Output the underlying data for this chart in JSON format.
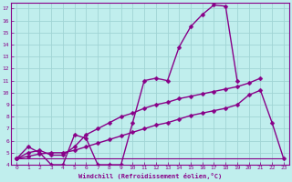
{
  "background_color": "#c0eeed",
  "grid_color": "#a0d4d4",
  "line_color": "#880088",
  "xlabel": "Windchill (Refroidissement éolien,°C)",
  "xlabel_color": "#880088",
  "tick_color": "#880088",
  "xlim": [
    -0.5,
    23.5
  ],
  "ylim": [
    4,
    17.5
  ],
  "xticks": [
    0,
    1,
    2,
    3,
    4,
    5,
    6,
    7,
    8,
    9,
    10,
    11,
    12,
    13,
    14,
    15,
    16,
    17,
    18,
    19,
    20,
    21,
    22,
    23
  ],
  "yticks": [
    4,
    5,
    6,
    7,
    8,
    9,
    10,
    11,
    12,
    13,
    14,
    15,
    16,
    17
  ],
  "series": [
    {
      "x": [
        0,
        1,
        2,
        3,
        4,
        5,
        6,
        7,
        8,
        9,
        10,
        11,
        12,
        13,
        14,
        15,
        16,
        17,
        18,
        19
      ],
      "y": [
        4.5,
        5.5,
        5.0,
        4.0,
        4.0,
        6.5,
        6.2,
        4.0,
        4.0,
        4.0,
        7.5,
        11.0,
        11.2,
        11.0,
        13.8,
        15.5,
        16.5,
        17.3,
        17.2,
        11.0
      ],
      "marker": "D",
      "markersize": 2.5,
      "lw": 1.0
    },
    {
      "x": [
        0,
        1,
        2,
        3,
        4,
        5,
        6,
        7,
        8,
        9,
        10,
        11,
        12,
        13,
        14,
        15,
        16,
        17,
        18,
        19,
        20,
        21
      ],
      "y": [
        4.5,
        5.0,
        5.2,
        4.8,
        4.8,
        5.5,
        6.5,
        7.0,
        7.5,
        8.0,
        8.3,
        8.7,
        9.0,
        9.2,
        9.5,
        9.7,
        9.9,
        10.1,
        10.3,
        10.5,
        10.8,
        11.2
      ],
      "marker": "D",
      "markersize": 2.5,
      "lw": 1.0
    },
    {
      "x": [
        0,
        1,
        2,
        3,
        4,
        5,
        6,
        7,
        8,
        9,
        10,
        11,
        12,
        13,
        14,
        15,
        16,
        17,
        18,
        19,
        20,
        21,
        22,
        23
      ],
      "y": [
        4.5,
        4.7,
        4.9,
        5.0,
        5.0,
        5.2,
        5.5,
        5.8,
        6.1,
        6.4,
        6.7,
        7.0,
        7.3,
        7.5,
        7.8,
        8.1,
        8.3,
        8.5,
        8.7,
        9.0,
        9.8,
        10.2,
        7.5,
        4.5
      ],
      "marker": "D",
      "markersize": 2.5,
      "lw": 1.0
    },
    {
      "x": [
        0,
        1,
        2,
        3,
        4,
        5,
        6,
        7,
        8,
        9,
        10,
        11,
        12,
        13,
        14,
        15,
        16,
        17,
        18,
        19,
        20,
        21,
        22,
        23
      ],
      "y": [
        4.5,
        4.5,
        4.5,
        4.5,
        4.5,
        4.5,
        4.5,
        4.5,
        4.5,
        4.5,
        4.5,
        4.5,
        4.5,
        4.5,
        4.5,
        4.5,
        4.5,
        4.5,
        4.5,
        4.5,
        4.5,
        4.5,
        4.5,
        4.5
      ],
      "marker": null,
      "markersize": 0,
      "lw": 0.8
    }
  ]
}
